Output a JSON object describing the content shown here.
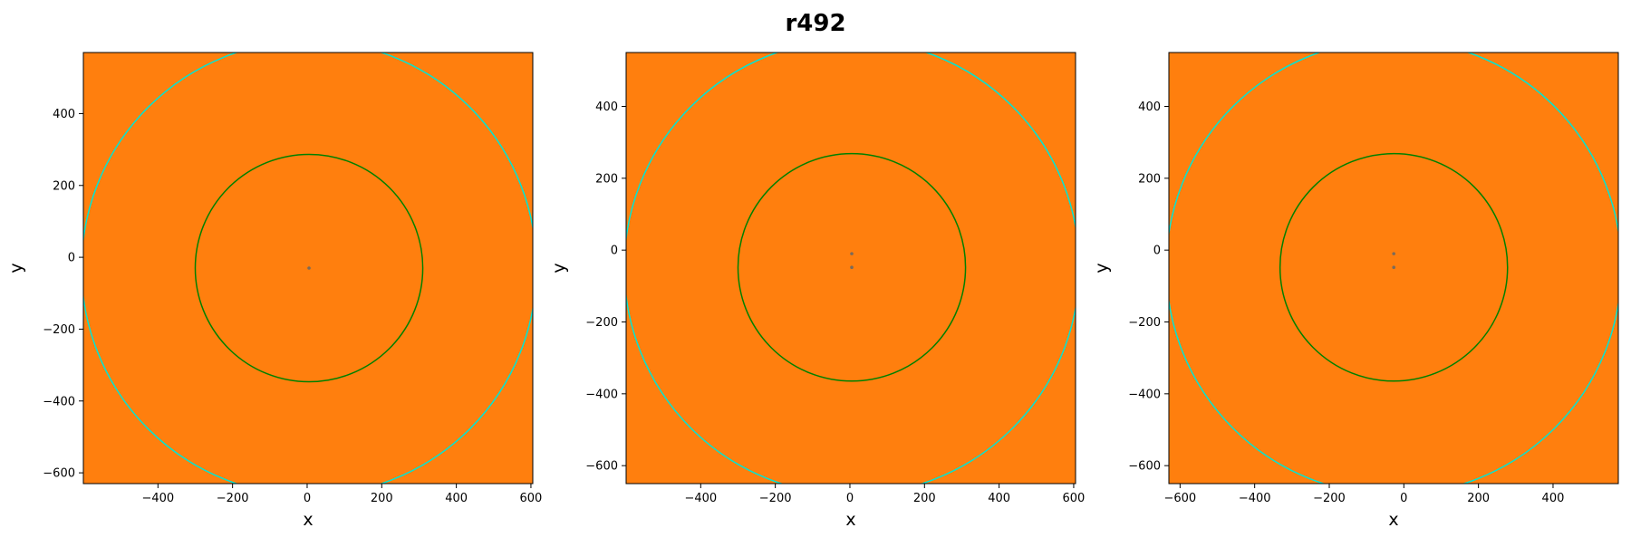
{
  "figure": {
    "title": "r492"
  },
  "colors": {
    "background": "#ff7f0e",
    "inner_circle": "#008000",
    "outer_circle": "#00e5d4",
    "center_marker": "#7a6a5a"
  },
  "chart_data": [
    {
      "type": "scatter",
      "xlabel": "x",
      "ylabel": "y",
      "xlim": [
        -600,
        605
      ],
      "ylim": [
        -630,
        570
      ],
      "xticks": [
        -400,
        -200,
        0,
        200,
        400,
        600
      ],
      "yticks": [
        -600,
        -400,
        -200,
        0,
        200,
        400
      ],
      "circles": [
        {
          "name": "inner",
          "cx": 5,
          "cy": -30,
          "r": 305
        },
        {
          "name": "outer",
          "cx": 5,
          "cy": -30,
          "r": 610
        }
      ],
      "markers": [
        {
          "x": 5,
          "y": -30
        }
      ],
      "grid": false
    },
    {
      "type": "scatter",
      "xlabel": "x",
      "ylabel": "y",
      "xlim": [
        -600,
        605
      ],
      "ylim": [
        -650,
        550
      ],
      "xticks": [
        -400,
        -200,
        0,
        200,
        400,
        600
      ],
      "yticks": [
        -600,
        -400,
        -200,
        0,
        200,
        400
      ],
      "circles": [
        {
          "name": "inner",
          "cx": 5,
          "cy": -48,
          "r": 305
        },
        {
          "name": "outer",
          "cx": 5,
          "cy": -48,
          "r": 610
        }
      ],
      "markers": [
        {
          "x": 5,
          "y": -48
        },
        {
          "x": 5,
          "y": -10
        }
      ],
      "grid": false
    },
    {
      "type": "scatter",
      "xlabel": "x",
      "ylabel": "y",
      "xlim": [
        -630,
        575
      ],
      "ylim": [
        -650,
        550
      ],
      "xticks": [
        -600,
        -400,
        -200,
        0,
        200,
        400
      ],
      "yticks": [
        -600,
        -400,
        -200,
        0,
        200,
        400
      ],
      "circles": [
        {
          "name": "inner",
          "cx": -27,
          "cy": -48,
          "r": 305
        },
        {
          "name": "outer",
          "cx": -27,
          "cy": -48,
          "r": 610
        }
      ],
      "markers": [
        {
          "x": -27,
          "y": -48
        },
        {
          "x": -27,
          "y": -10
        }
      ],
      "grid": false
    }
  ]
}
